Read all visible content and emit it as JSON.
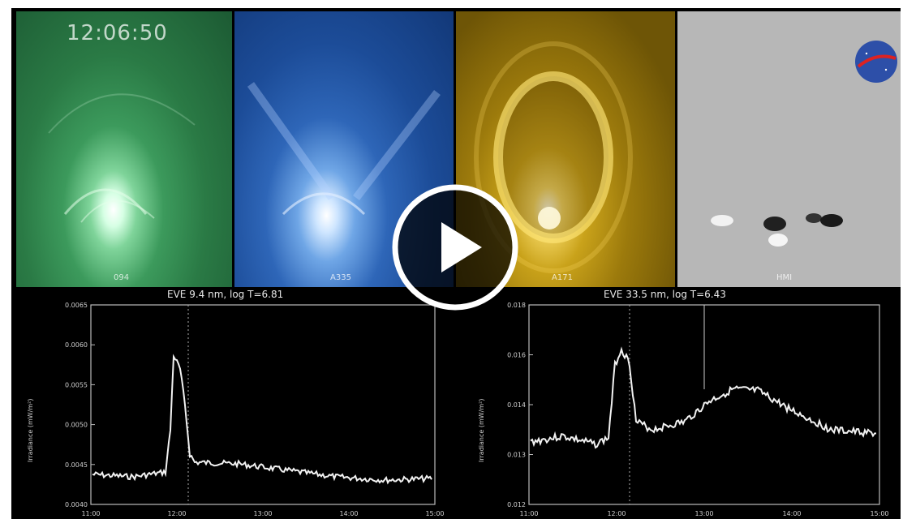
{
  "video": {
    "timestamp": "12:06:50",
    "play_icon": "play-icon",
    "logo": "nasa-logo"
  },
  "panels": [
    {
      "label": "094",
      "color": "#2f7a45"
    },
    {
      "label": "A335",
      "color": "#1f57a8"
    },
    {
      "label": "A171",
      "color": "#a88a10"
    },
    {
      "label": "HMI",
      "color": "#b8b8b8"
    }
  ],
  "plots": {
    "left": {
      "title": "EVE 9.4 nm, log T=6.81",
      "ylabel": "Irradiance (mW/m²)",
      "yticks": [
        "0.0065",
        "0.0060",
        "0.0055",
        "0.0050",
        "0.0045",
        "0.0040"
      ],
      "xticks": [
        "11:00",
        "12:00",
        "13:00",
        "14:00",
        "15:00"
      ]
    },
    "right": {
      "title": "EVE 33.5 nm, log T=6.43",
      "ylabel": "Irradiance (mW/m²)",
      "yticks": [
        "0.018",
        "0.016",
        "0.014",
        "0.013",
        "0.012"
      ],
      "xticks": [
        "11:00",
        "12:00",
        "13:00",
        "14:00",
        "15:00"
      ]
    }
  }
}
